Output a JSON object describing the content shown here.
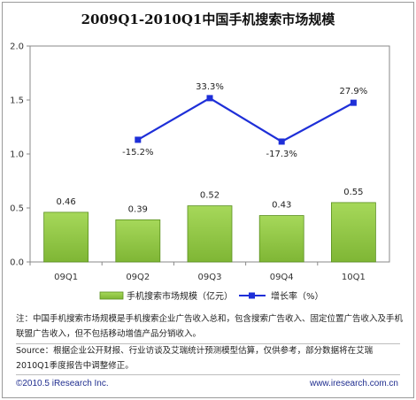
{
  "chart_data": {
    "type": "bar",
    "title": "2009Q1-2010Q1中国手机搜索市场规模",
    "categories": [
      "09Q1",
      "09Q2",
      "09Q3",
      "09Q4",
      "10Q1"
    ],
    "ylim": [
      0,
      2.0
    ],
    "yticks": [
      "0.0",
      "0.5",
      "1.0",
      "1.5",
      "2.0"
    ],
    "series": [
      {
        "name": "手机搜索市场规模（亿元）",
        "type": "bar",
        "values": [
          0.46,
          0.39,
          0.52,
          0.43,
          0.55
        ],
        "labels": [
          "0.46",
          "0.39",
          "0.52",
          "0.43",
          "0.55"
        ],
        "color": "#8cc63f"
      },
      {
        "name": "增长率（%）",
        "type": "line",
        "values": [
          null,
          -15.2,
          33.3,
          -17.3,
          27.9
        ],
        "labels": [
          "",
          "-15.2%",
          "33.3%",
          "-17.3%",
          "27.9%"
        ],
        "color": "#1e2fd8"
      }
    ],
    "legend_position": "bottom",
    "grid": false
  },
  "notes": {
    "note": "注：中国手机搜索市场规模是手机搜索企业广告收入总和，包含搜索广告收入、固定位置广告收入及手机联盟广告收入，但不包括移动增值产品分销收入。",
    "source": "Source：根据企业公开财报、行业访谈及艾瑞统计预测模型估算，仅供参考，部分数据将在艾瑞2010Q1季度报告中调整修正。"
  },
  "footer": {
    "copyright": "©2010.5 iResearch Inc.",
    "website": "www.iresearch.com.cn"
  }
}
